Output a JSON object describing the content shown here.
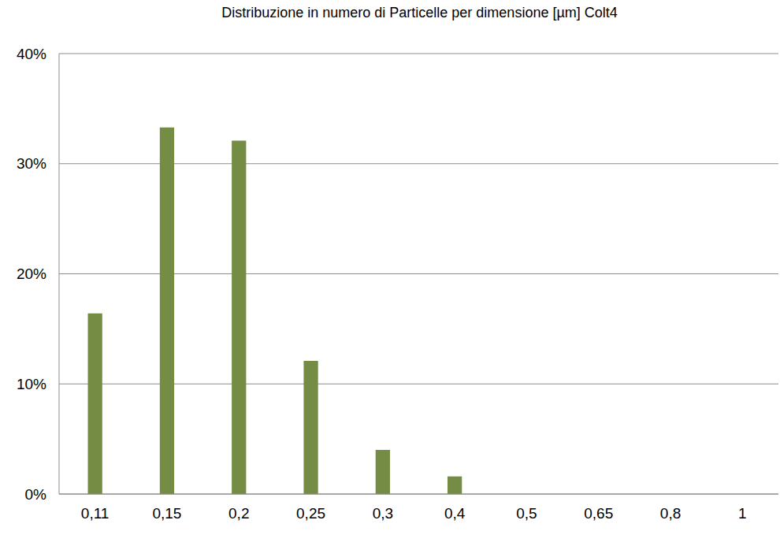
{
  "chart_data": {
    "type": "bar",
    "title": "Distribuzione in numero di Particelle per dimensione [µm] Colt4",
    "categories": [
      "0,11",
      "0,15",
      "0,2",
      "0,25",
      "0,3",
      "0,4",
      "0,5",
      "0,65",
      "0,8",
      "1"
    ],
    "values": [
      16.4,
      33.3,
      32.1,
      12.1,
      4.0,
      1.6,
      0,
      0,
      0,
      0
    ],
    "color": "#748c44",
    "ylim": [
      0,
      40
    ],
    "yticks": [
      {
        "value": 0,
        "label": "0%"
      },
      {
        "value": 10,
        "label": "10%"
      },
      {
        "value": 20,
        "label": "20%"
      },
      {
        "value": 30,
        "label": "30%"
      },
      {
        "value": 40,
        "label": "40%"
      }
    ],
    "grid": true
  }
}
